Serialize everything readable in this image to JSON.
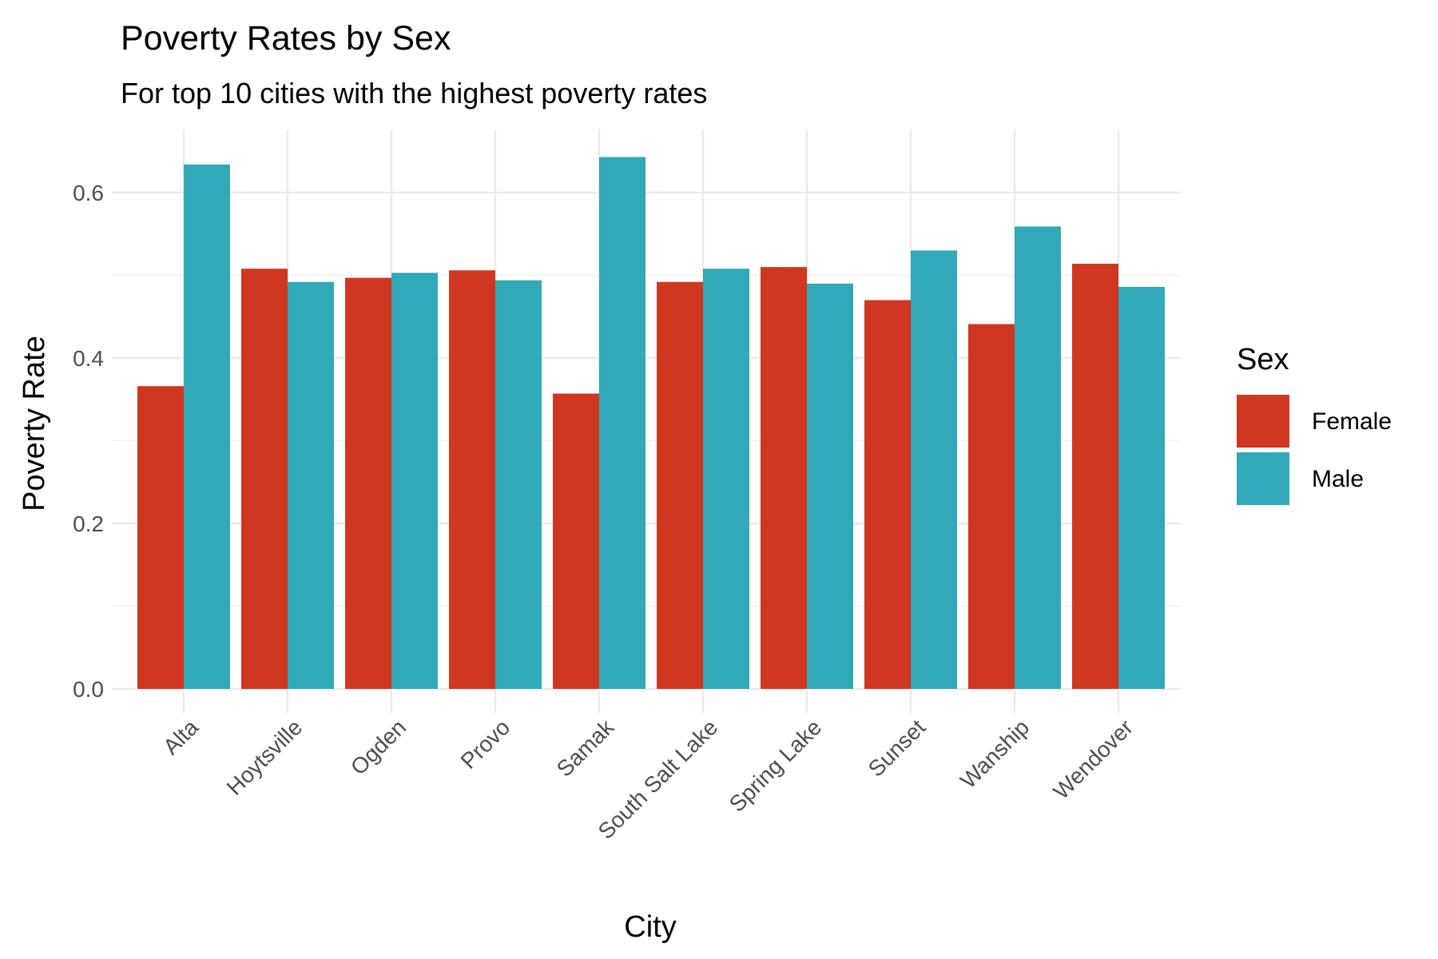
{
  "chart_data": {
    "type": "bar",
    "title": "Poverty Rates by Sex",
    "subtitle": "For top 10 cities with the highest poverty rates",
    "xlabel": "City",
    "ylabel": "Poverty Rate",
    "categories": [
      "Alta",
      "Hoytsville",
      "Ogden",
      "Provo",
      "Samak",
      "South Salt Lake",
      "Spring Lake",
      "Sunset",
      "Wanship",
      "Wendover"
    ],
    "series": [
      {
        "name": "Female",
        "color": "#cf3721",
        "values": [
          0.366,
          0.508,
          0.497,
          0.506,
          0.357,
          0.492,
          0.51,
          0.47,
          0.441,
          0.514
        ]
      },
      {
        "name": "Male",
        "color": "#31a9b8",
        "values": [
          0.634,
          0.492,
          0.503,
          0.494,
          0.643,
          0.508,
          0.49,
          0.53,
          0.559,
          0.486
        ]
      }
    ],
    "ylim": [
      0,
      0.65
    ],
    "yticks": [
      0.0,
      0.2,
      0.4,
      0.6
    ],
    "ytick_labels": [
      "0.0",
      "0.2",
      "0.4",
      "0.6"
    ],
    "grid": true,
    "legend": {
      "title": "Sex",
      "position": "right"
    }
  }
}
